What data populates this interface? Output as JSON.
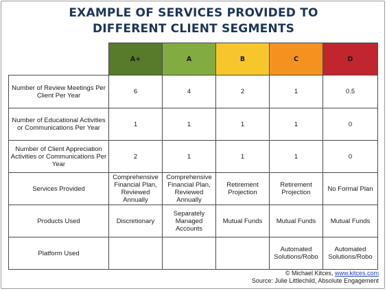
{
  "title": {
    "line1": "EXAMPLE OF SERVICES PROVIDED TO",
    "line2": "DIFFERENT CLIENT SEGMENTS"
  },
  "segments": [
    {
      "label": "A+",
      "color": "#587a2b"
    },
    {
      "label": "A",
      "color": "#82ab41"
    },
    {
      "label": "B",
      "color": "#f7c62b"
    },
    {
      "label": "C",
      "color": "#f4921f"
    },
    {
      "label": "D",
      "color": "#c1262e"
    }
  ],
  "rows": [
    {
      "label": "Number of Review Meetings Per Client Per Year",
      "values": [
        "6",
        "4",
        "2",
        "1",
        "0.5"
      ]
    },
    {
      "label": "Number of Educational Activities or Communications Per Year",
      "values": [
        "1",
        "1",
        "1",
        "1",
        "0"
      ]
    },
    {
      "label": "Number of Client Appreciation Activities or Communications Per Year",
      "values": [
        "2",
        "1",
        "1",
        "1",
        "0"
      ]
    },
    {
      "label": "Services Provided",
      "values": [
        "Comprehensive Financial Plan, Reviewed Annually",
        "Comprehensive Financial Plan, Reviewed Annually",
        "Retirement Projection",
        "Retirement Projection",
        "No Formal Plan"
      ]
    },
    {
      "label": "Products Used",
      "values": [
        "Discretionary",
        "Separately Managed Accounts",
        "Mutual Funds",
        "Mutual Funds",
        "Mutual Funds"
      ]
    },
    {
      "label": "Platform Used",
      "values": [
        "",
        "",
        "",
        "Automated Solutions/Robo",
        "Automated Solutions/Robo"
      ]
    }
  ],
  "credits": {
    "copyright": "© Michael Kitces,",
    "link": "www.kitces.com",
    "source": "Source: Julie Littlechild, Absolute Engagement"
  }
}
